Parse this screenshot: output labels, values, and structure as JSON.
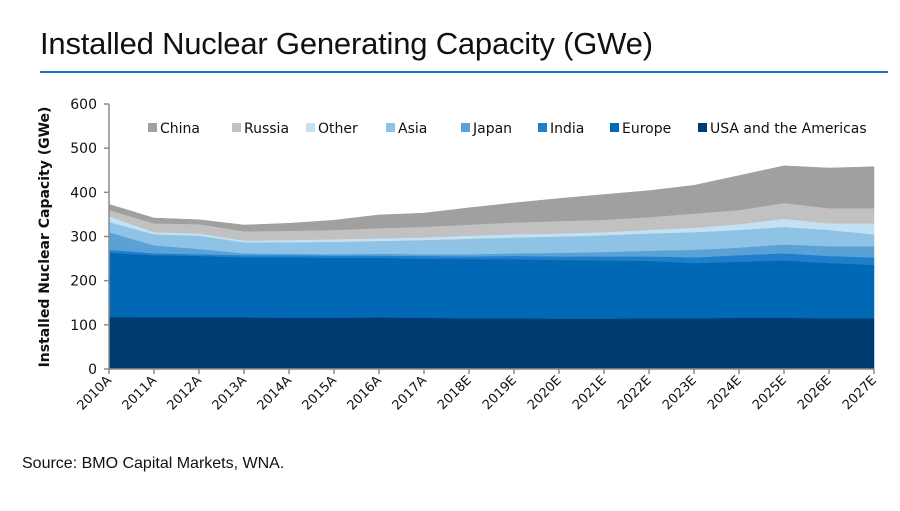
{
  "header": {
    "title": "Installed Nuclear Generating Capacity (GWe)"
  },
  "footer": {
    "source": "Source: BMO Capital Markets, WNA."
  },
  "chart_data": {
    "type": "area",
    "stacked": true,
    "title": "Installed Nuclear Generating Capacity (GWe)",
    "xlabel": "",
    "ylabel": "Installed Nuclear Capacity (GWe)",
    "ylim": [
      0,
      600
    ],
    "yticks": [
      0,
      100,
      200,
      300,
      400,
      500,
      600
    ],
    "grid": false,
    "legend_position": "top",
    "categories": [
      "2010A",
      "2011A",
      "2012A",
      "2013A",
      "2014A",
      "2015A",
      "2016A",
      "2017A",
      "2018E",
      "2019E",
      "2020E",
      "2021E",
      "2022E",
      "2023E",
      "2024E",
      "2025E",
      "2026E",
      "2027E"
    ],
    "series": [
      {
        "name": "USA and the Americas",
        "color": "#003c71",
        "values": [
          118,
          117,
          117,
          117,
          116,
          116,
          117,
          116,
          115,
          115,
          114,
          114,
          115,
          115,
          116,
          116,
          115,
          115
        ]
      },
      {
        "name": "Europe",
        "color": "#0068b5",
        "values": [
          145,
          141,
          139,
          136,
          137,
          136,
          135,
          134,
          134,
          134,
          133,
          132,
          130,
          125,
          127,
          130,
          125,
          121
        ]
      },
      {
        "name": "India",
        "color": "#1f7fcb",
        "values": [
          7,
          4,
          4,
          5,
          5,
          5,
          5,
          6,
          6,
          7,
          8,
          9,
          10,
          13,
          15,
          16,
          16,
          17
        ]
      },
      {
        "name": "Japan",
        "color": "#5aa2d6",
        "values": [
          40,
          18,
          12,
          4,
          3,
          3,
          4,
          4,
          5,
          6,
          8,
          10,
          13,
          17,
          17,
          20,
          22,
          25
        ]
      },
      {
        "name": "Asia",
        "color": "#8ec3e6",
        "values": [
          23,
          25,
          30,
          25,
          26,
          28,
          29,
          32,
          35,
          36,
          37,
          38,
          39,
          40,
          40,
          40,
          37,
          27
        ]
      },
      {
        "name": "Other",
        "color": "#c4e0f3",
        "values": [
          13,
          5,
          5,
          4,
          5,
          6,
          6,
          6,
          7,
          7,
          7,
          7,
          8,
          10,
          13,
          18,
          15,
          25
        ]
      },
      {
        "name": "Russia",
        "color": "#c1c1c1",
        "values": [
          14,
          20,
          21,
          21,
          21,
          21,
          23,
          24,
          25,
          27,
          28,
          28,
          29,
          32,
          32,
          36,
          34,
          34
        ]
      },
      {
        "name": "China",
        "color": "#a0a0a0",
        "values": [
          13,
          12,
          10,
          14,
          17,
          22,
          30,
          31,
          38,
          44,
          51,
          57,
          60,
          64,
          78,
          84,
          91,
          94
        ]
      }
    ],
    "legend_order": [
      "China",
      "Russia",
      "Other",
      "Asia",
      "Japan",
      "India",
      "Europe",
      "USA and the Americas"
    ]
  }
}
